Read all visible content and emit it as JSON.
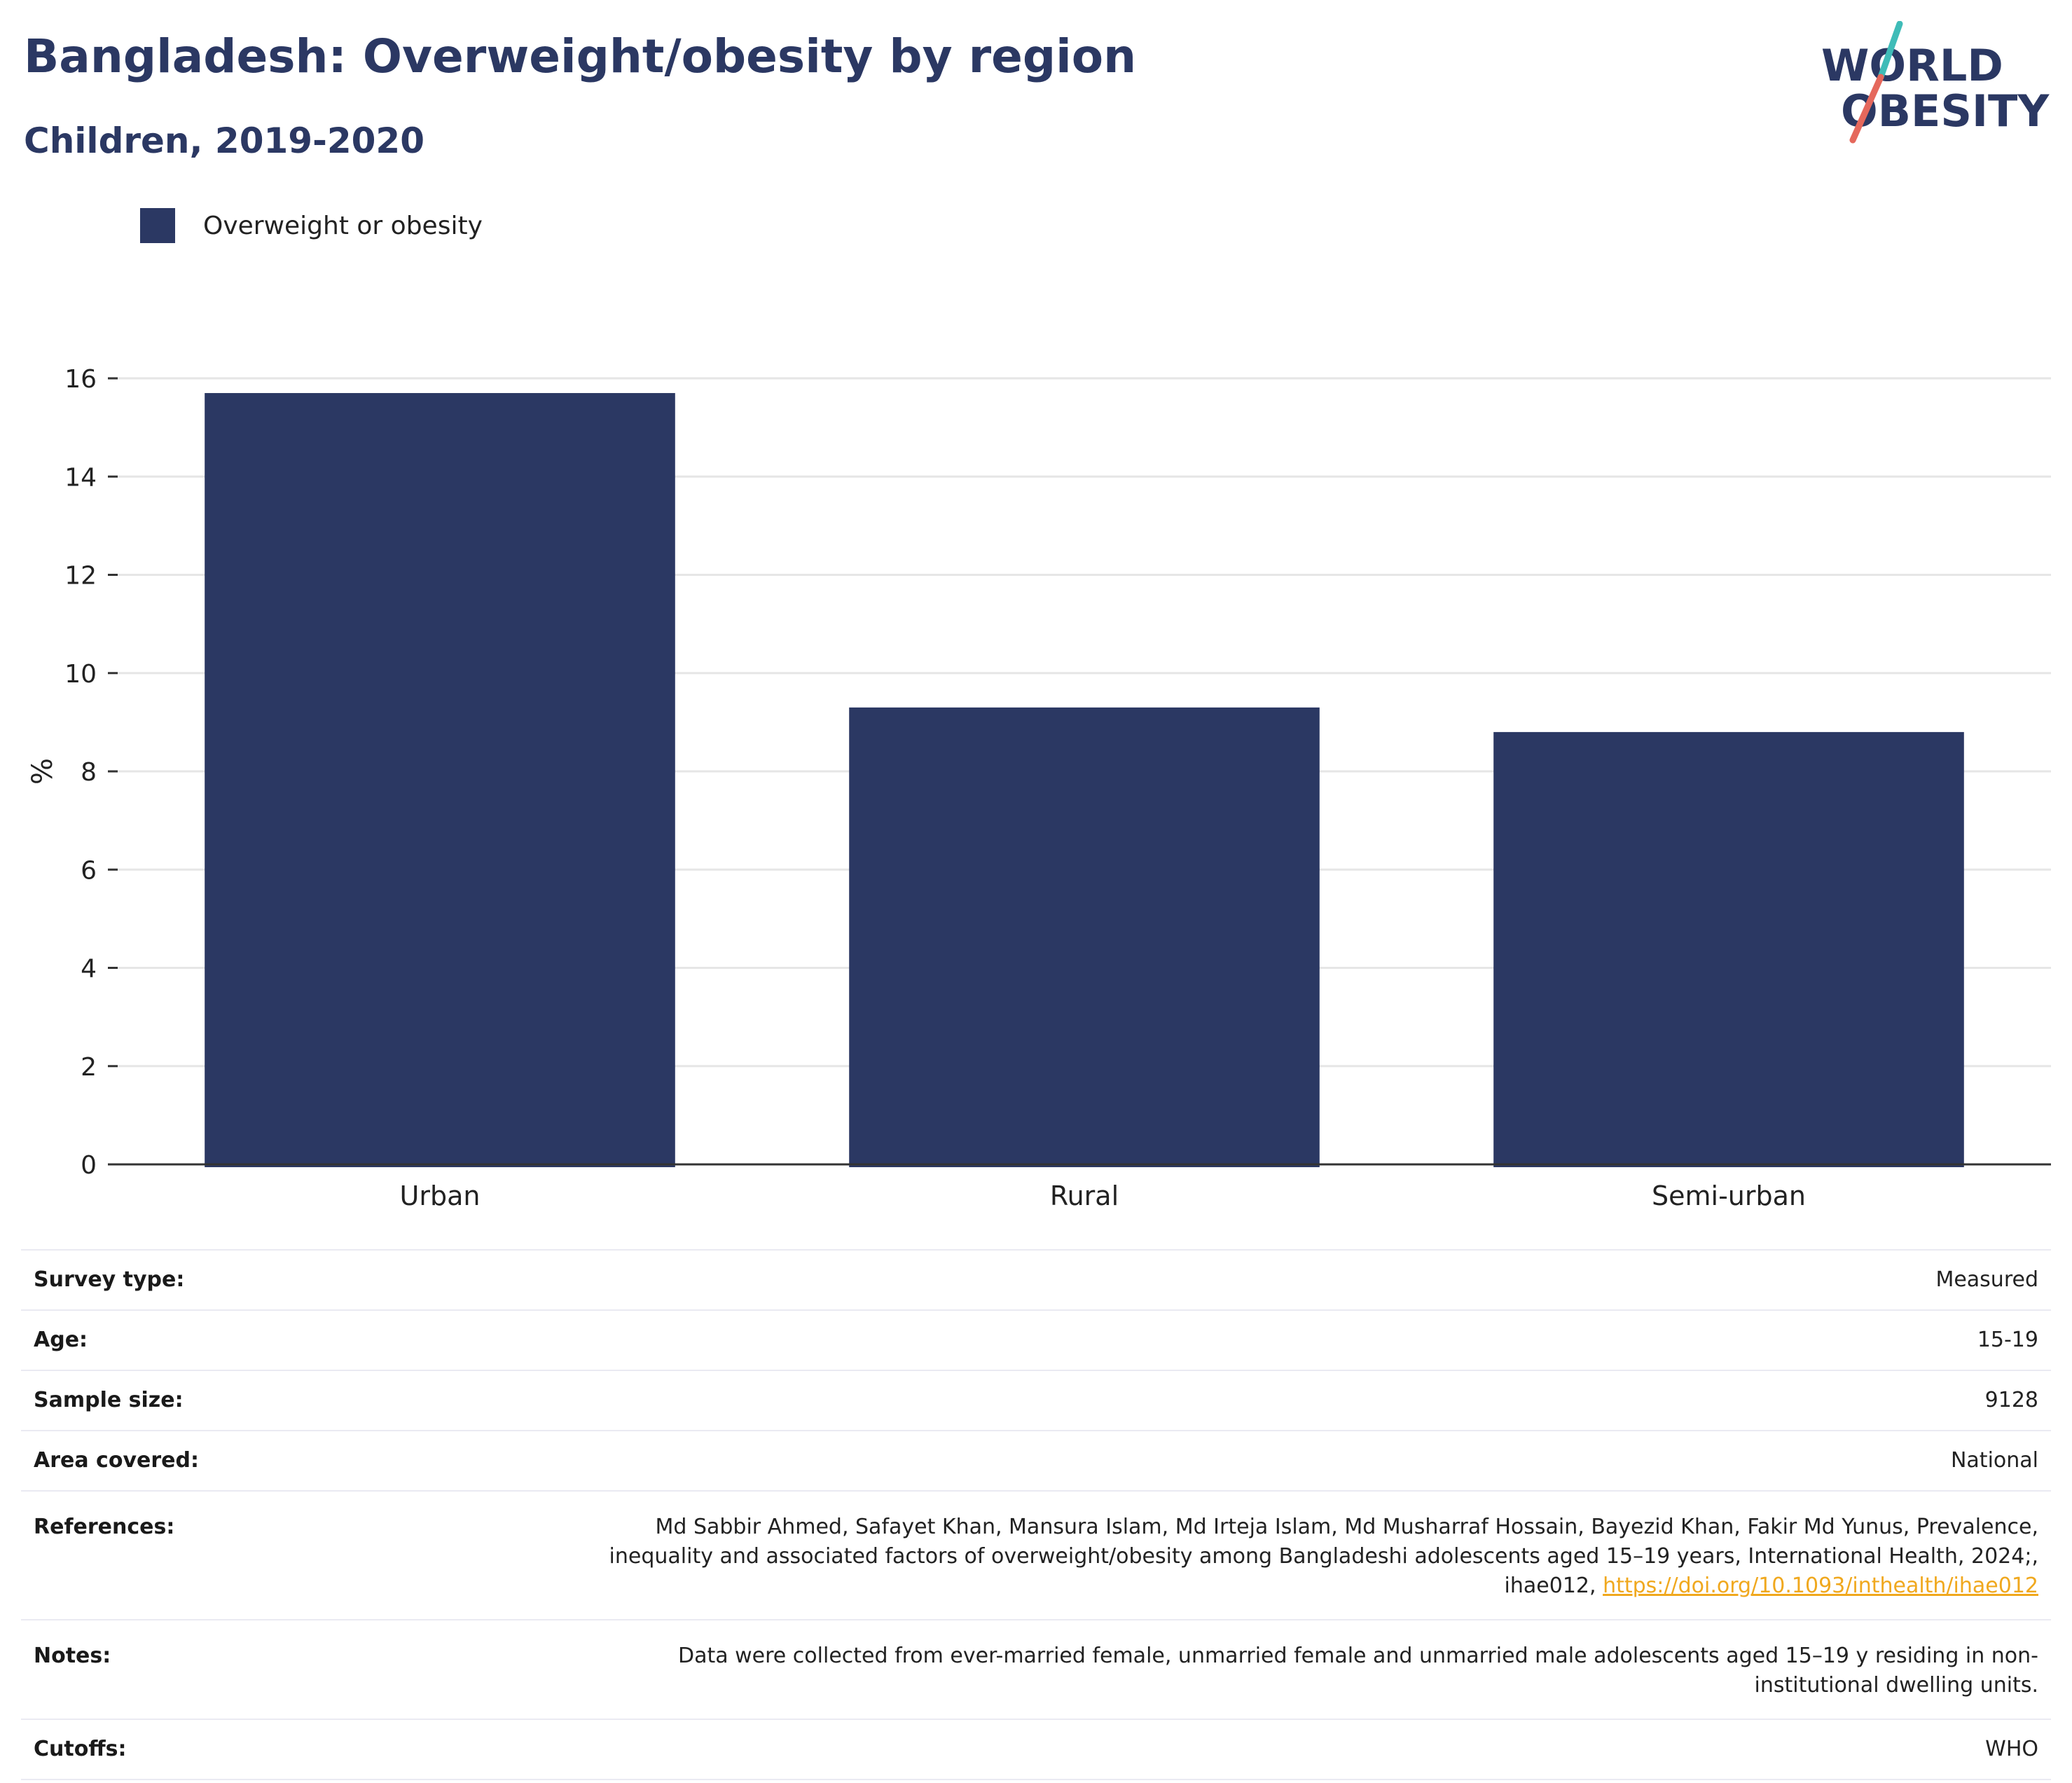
{
  "header": {
    "title": "Bangladesh: Overweight/obesity by region",
    "subtitle": "Children, 2019-2020"
  },
  "logo": {
    "line1": "WORLD",
    "line2": "OBESITY",
    "colors": {
      "text": "#2b3863",
      "slash_top": "#3fbcb8",
      "slash_bottom": "#e5685c"
    }
  },
  "colors": {
    "bar": "#2b3863",
    "axis": "#333333",
    "grid": "#e6e6e6",
    "link": "#f0a81e"
  },
  "chart_data": {
    "type": "bar",
    "title": "Bangladesh: Overweight/obesity by region",
    "subtitle": "Children, 2019-2020",
    "categories": [
      "Urban",
      "Rural",
      "Semi-urban"
    ],
    "series": [
      {
        "name": "Overweight or obesity",
        "values": [
          15.7,
          9.3,
          8.8
        ],
        "color": "#2b3863"
      }
    ],
    "xlabel": "",
    "ylabel": "%",
    "ylim": [
      0,
      16
    ],
    "yticks": [
      0,
      2,
      4,
      6,
      8,
      10,
      12,
      14,
      16
    ],
    "grid": true,
    "legend_position": "top-left"
  },
  "info": {
    "survey_type": {
      "label": "Survey type:",
      "value": "Measured"
    },
    "age": {
      "label": "Age:",
      "value": "15-19"
    },
    "sample_size": {
      "label": "Sample size:",
      "value": "9128"
    },
    "area_covered": {
      "label": "Area covered:",
      "value": "National"
    },
    "references": {
      "label": "References:",
      "line1": "Md Sabbir Ahmed, Safayet Khan, Mansura Islam, Md Irteja Islam, Md Musharraf Hossain, Bayezid Khan, Fakir Md Yunus, Prevalence,",
      "line2": "inequality and associated factors of overweight/obesity among Bangladeshi adolescents aged 15–19 years, International Health, 2024;,",
      "line3_prefix": "ihae012, ",
      "link": "https://doi.org/10.1093/inthealth/ihae012"
    },
    "notes": {
      "label": "Notes:",
      "line1": "Data were collected from ever-married female, unmarried female and unmarried male adolescents aged 15–19 y residing in non-",
      "line2": "institutional dwelling units."
    },
    "cutoffs": {
      "label": "Cutoffs:",
      "value": "WHO"
    }
  }
}
